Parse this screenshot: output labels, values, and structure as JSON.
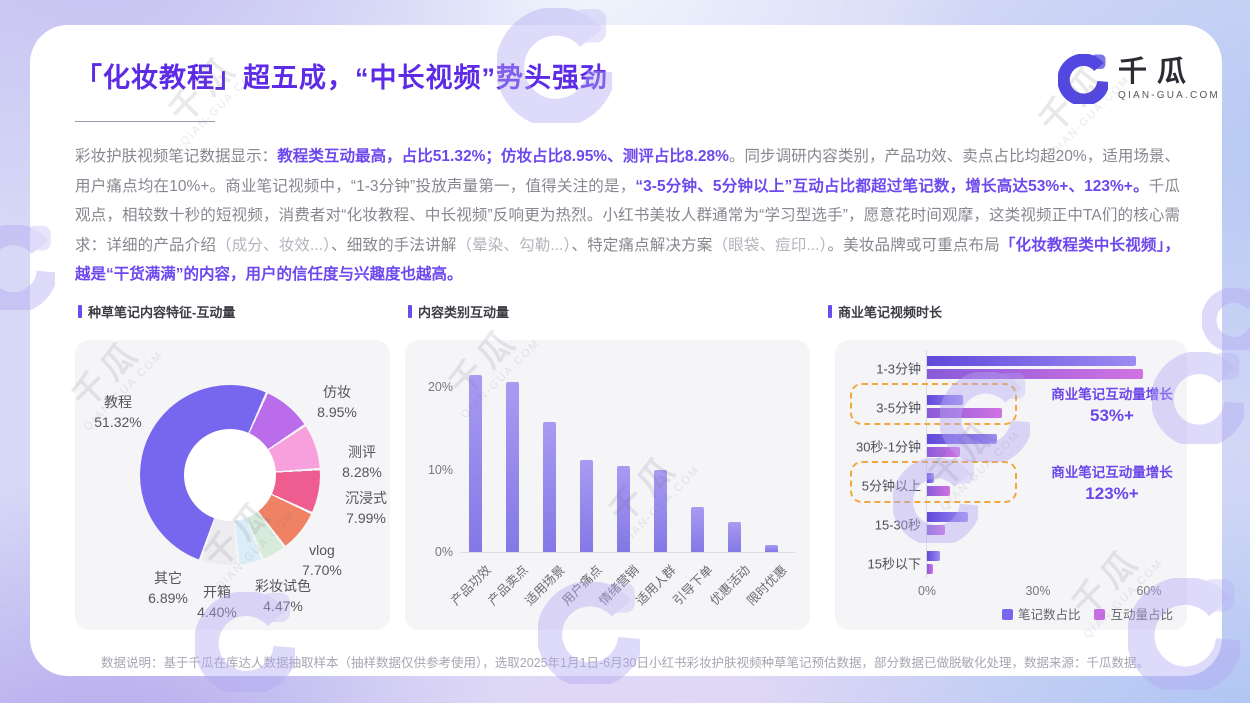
{
  "page": {
    "title": "「化妆教程」超五成，“中长视频”势头强劲",
    "note": "数据说明：基于千瓜在库达人数据抽取样本（抽样数据仅供参考使用），选取2025年1月1日-6月30日小红书彩妆护肤视频种草笔记预估数据，部分数据已做脱敏化处理，数据来源：千瓜数据。"
  },
  "brand": {
    "logo_cn": "千瓜",
    "logo_en": "QIAN-GUA.COM"
  },
  "watermark": {
    "cn": "千瓜",
    "en": "QIAN-GUA.COM"
  },
  "paragraph": {
    "segments": [
      {
        "style": "n",
        "text": "彩妆护肤视频笔记数据显示："
      },
      {
        "style": "e",
        "text": "教程类互动最高，占比51.32%；仿妆占比8.95%、测评占比8.28%"
      },
      {
        "style": "n",
        "text": "。同步调研内容类别，产品功效、卖点占比均超20%，适用场景、用户痛点均在10%+。商业笔记视频中，“1-3分钟”投放声量第一，值得关注的是，"
      },
      {
        "style": "e",
        "text": "“3-5分钟、5分钟以上”互动占比都超过笔记数，增长高达53%+、123%+。"
      },
      {
        "style": "n",
        "text": "千瓜观点，相较数十秒的短视频，消费者对“化妆教程、中长视频”反响更为热烈。小红书美妆人群通常为“学习型选手”，愿意花时间观摩，这类视频正中TA们的核心需求：详细的产品介绍"
      },
      {
        "style": "l",
        "text": "（成分、妆效...）"
      },
      {
        "style": "n",
        "text": "、细致的手法讲解"
      },
      {
        "style": "l",
        "text": "（晕染、勾勒...）"
      },
      {
        "style": "n",
        "text": "、特定痛点解决方案"
      },
      {
        "style": "l",
        "text": "（眼袋、痘印...）"
      },
      {
        "style": "n",
        "text": "。美妆品牌或可重点布局"
      },
      {
        "style": "e",
        "text": "「化妆教程类中长视频」，越是“干货满满”的内容，用户的信任度与兴趣度也越高。"
      }
    ]
  },
  "sections": [
    {
      "label": "种草笔记内容特征-互动量"
    },
    {
      "label": "内容类别互动量"
    },
    {
      "label": "商业笔记视频时长"
    }
  ],
  "colors": {
    "accent": "#6a4bee",
    "title": "#5d2be6",
    "emphasis": "#6c48ee",
    "dash": "#f3a83d",
    "legend_notes": "#7766ee",
    "legend_engagement": "#c56fe2"
  },
  "chart_data": [
    {
      "id": "donut",
      "type": "pie",
      "title": "种草笔记内容特征-互动量",
      "donut": true,
      "start_angle_deg": 25,
      "legend_position": "around",
      "segments": [
        {
          "label": "仿妆",
          "value": 8.95,
          "color": "#bb6ceb"
        },
        {
          "label": "测评",
          "value": 8.28,
          "color": "#f8a0dd"
        },
        {
          "label": "沉浸式",
          "value": 7.99,
          "color": "#ee5c90"
        },
        {
          "label": "vlog",
          "value": 7.7,
          "color": "#ee8263"
        },
        {
          "label": "彩妆试色",
          "value": 4.47,
          "color": "#d7ebdb"
        },
        {
          "label": "开箱",
          "value": 4.4,
          "color": "#dbedf7"
        },
        {
          "label": "其它",
          "value": 6.89,
          "color": "#ededf0"
        },
        {
          "label": "教程",
          "value": 51.32,
          "color": "#7766ee"
        }
      ]
    },
    {
      "id": "category-engagement",
      "type": "bar",
      "title": "内容类别互动量",
      "categories": [
        "产品功效",
        "产品卖点",
        "适用场景",
        "用户痛点",
        "情绪营销",
        "适用人群",
        "引导下单",
        "优惠活动",
        "限时优惠"
      ],
      "values": [
        21.5,
        20.6,
        15.8,
        11.2,
        10.4,
        10.0,
        5.4,
        3.6,
        0.8
      ],
      "yticks": [
        "0%",
        "10%",
        "20%"
      ],
      "ylim": [
        0,
        25
      ],
      "grid": false
    },
    {
      "id": "video-duration",
      "type": "bar",
      "orientation": "horizontal",
      "title": "商业笔记视频时长",
      "categories": [
        "1-3分钟",
        "3-5分钟",
        "30秒-1分钟",
        "5分钟以上",
        "15-30秒",
        "15秒以下"
      ],
      "series": [
        {
          "name": "笔记数占比",
          "color": "#7766ee",
          "values": [
            56.5,
            9.7,
            19.0,
            1.8,
            11.2,
            3.5
          ]
        },
        {
          "name": "互动量占比",
          "color": "#c56fe2",
          "values": [
            58.5,
            20.3,
            9.0,
            6.3,
            4.8,
            1.5
          ]
        }
      ],
      "xticks": [
        "0%",
        "30%",
        "60%"
      ],
      "xlim": [
        0,
        65
      ],
      "legend_position": "bottom-right",
      "annotations": [
        {
          "target": "3-5分钟",
          "line1": "商业笔记互动量增长",
          "line2": "53%+"
        },
        {
          "target": "5分钟以上",
          "line1": "商业笔记互动量增长",
          "line2": "123%+"
        }
      ]
    }
  ]
}
